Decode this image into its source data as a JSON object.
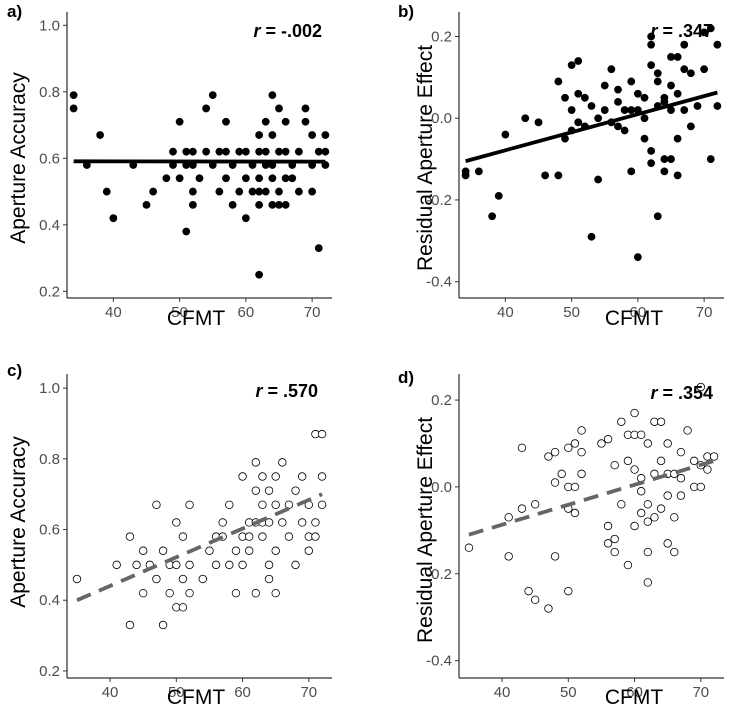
{
  "chart_data": [
    {
      "panel": "a)",
      "type": "scatter",
      "xlabel": "CFMT",
      "ylabel": "Aperture Accuracy",
      "annotation": {
        "stat": "r",
        "value": " = -.002"
      },
      "xlim": [
        33,
        73
      ],
      "ylim": [
        0.18,
        1.04
      ],
      "xticks": [
        40,
        50,
        60,
        70
      ],
      "yticks": [
        0.2,
        0.4,
        0.6,
        0.8,
        1.0
      ],
      "ytick_labels": [
        "0.2",
        "0.4",
        "0.6",
        "0.8",
        "1.0"
      ],
      "marker": "filled",
      "trend": {
        "style": "solid",
        "color": "#000000",
        "x": [
          34,
          72
        ],
        "y": [
          0.591,
          0.59
        ]
      },
      "points": [
        [
          34,
          0.79
        ],
        [
          34,
          0.75
        ],
        [
          36,
          0.58
        ],
        [
          38,
          0.67
        ],
        [
          39,
          0.5
        ],
        [
          40,
          0.42
        ],
        [
          43,
          0.58
        ],
        [
          45,
          0.46
        ],
        [
          46,
          0.5
        ],
        [
          48,
          0.54
        ],
        [
          49,
          0.62
        ],
        [
          49,
          0.58
        ],
        [
          50,
          0.71
        ],
        [
          50,
          0.54
        ],
        [
          51,
          0.62
        ],
        [
          51,
          0.58
        ],
        [
          51,
          0.38
        ],
        [
          52,
          0.62
        ],
        [
          52,
          0.58
        ],
        [
          52,
          0.5
        ],
        [
          52,
          0.46
        ],
        [
          53,
          0.54
        ],
        [
          54,
          0.75
        ],
        [
          54,
          0.62
        ],
        [
          55,
          0.79
        ],
        [
          55,
          0.58
        ],
        [
          56,
          0.62
        ],
        [
          56,
          0.5
        ],
        [
          57,
          0.71
        ],
        [
          57,
          0.62
        ],
        [
          57,
          0.54
        ],
        [
          58,
          0.58
        ],
        [
          58,
          0.46
        ],
        [
          59,
          0.62
        ],
        [
          59,
          0.5
        ],
        [
          60,
          0.62
        ],
        [
          60,
          0.54
        ],
        [
          60,
          0.42
        ],
        [
          61,
          0.5
        ],
        [
          61,
          0.58
        ],
        [
          62,
          0.67
        ],
        [
          62,
          0.62
        ],
        [
          62,
          0.54
        ],
        [
          62,
          0.5
        ],
        [
          62,
          0.46
        ],
        [
          62,
          0.25
        ],
        [
          63,
          0.71
        ],
        [
          63,
          0.62
        ],
        [
          63,
          0.58
        ],
        [
          63,
          0.5
        ],
        [
          64,
          0.79
        ],
        [
          64,
          0.67
        ],
        [
          64,
          0.58
        ],
        [
          64,
          0.54
        ],
        [
          64,
          0.46
        ],
        [
          65,
          0.75
        ],
        [
          65,
          0.62
        ],
        [
          65,
          0.5
        ],
        [
          65,
          0.46
        ],
        [
          66,
          0.71
        ],
        [
          66,
          0.62
        ],
        [
          66,
          0.54
        ],
        [
          66,
          0.46
        ],
        [
          67,
          0.58
        ],
        [
          67,
          0.54
        ],
        [
          68,
          0.62
        ],
        [
          68,
          0.5
        ],
        [
          69,
          0.75
        ],
        [
          69,
          0.71
        ],
        [
          70,
          0.67
        ],
        [
          70,
          0.58
        ],
        [
          70,
          0.5
        ],
        [
          71,
          0.62
        ],
        [
          71,
          0.33
        ],
        [
          72,
          0.67
        ],
        [
          72,
          0.62
        ],
        [
          72,
          0.58
        ]
      ]
    },
    {
      "panel": "b)",
      "type": "scatter",
      "xlabel": "CFMT",
      "ylabel": "Residual Aperture Effect",
      "annotation": {
        "stat": "r",
        "value": " = .347"
      },
      "xlim": [
        33,
        73
      ],
      "ylim": [
        -0.44,
        0.26
      ],
      "xticks": [
        40,
        50,
        60,
        70
      ],
      "yticks": [
        -0.4,
        -0.2,
        0.0,
        0.2
      ],
      "ytick_labels": [
        "-0.4",
        "-0.2",
        "0.0",
        "0.2"
      ],
      "marker": "filled",
      "trend": {
        "style": "solid",
        "color": "#000000",
        "x": [
          34,
          72
        ],
        "y": [
          -0.105,
          0.063
        ]
      },
      "points": [
        [
          34,
          -0.13
        ],
        [
          34,
          -0.14
        ],
        [
          36,
          -0.13
        ],
        [
          38,
          -0.24
        ],
        [
          39,
          -0.19
        ],
        [
          40,
          -0.04
        ],
        [
          43,
          0.0
        ],
        [
          45,
          -0.01
        ],
        [
          46,
          -0.14
        ],
        [
          48,
          -0.14
        ],
        [
          48,
          0.09
        ],
        [
          49,
          0.05
        ],
        [
          49,
          -0.05
        ],
        [
          50,
          0.13
        ],
        [
          50,
          0.02
        ],
        [
          50,
          -0.03
        ],
        [
          51,
          0.14
        ],
        [
          51,
          0.06
        ],
        [
          51,
          -0.01
        ],
        [
          52,
          0.05
        ],
        [
          52,
          -0.02
        ],
        [
          53,
          -0.29
        ],
        [
          53,
          0.03
        ],
        [
          54,
          0.0
        ],
        [
          54,
          -0.15
        ],
        [
          55,
          0.02
        ],
        [
          55,
          0.08
        ],
        [
          56,
          0.12
        ],
        [
          56,
          -0.01
        ],
        [
          57,
          0.07
        ],
        [
          57,
          0.04
        ],
        [
          57,
          -0.02
        ],
        [
          58,
          0.02
        ],
        [
          58,
          -0.03
        ],
        [
          59,
          0.09
        ],
        [
          59,
          0.02
        ],
        [
          59,
          -0.13
        ],
        [
          60,
          0.06
        ],
        [
          60,
          0.02
        ],
        [
          60,
          -0.34
        ],
        [
          61,
          0.05
        ],
        [
          61,
          0.0
        ],
        [
          61,
          -0.05
        ],
        [
          62,
          0.2
        ],
        [
          62,
          0.18
        ],
        [
          62,
          0.13
        ],
        [
          62,
          -0.08
        ],
        [
          62,
          -0.11
        ],
        [
          63,
          0.11
        ],
        [
          63,
          0.09
        ],
        [
          63,
          0.03
        ],
        [
          63,
          -0.24
        ],
        [
          64,
          0.04
        ],
        [
          64,
          0.05
        ],
        [
          64,
          -0.1
        ],
        [
          64,
          -0.13
        ],
        [
          65,
          0.08
        ],
        [
          65,
          0.15
        ],
        [
          65,
          0.02
        ],
        [
          65,
          -0.1
        ],
        [
          66,
          0.15
        ],
        [
          66,
          0.06
        ],
        [
          66,
          -0.05
        ],
        [
          66,
          -0.14
        ],
        [
          67,
          0.18
        ],
        [
          67,
          0.12
        ],
        [
          67,
          0.02
        ],
        [
          68,
          0.11
        ],
        [
          68,
          -0.02
        ],
        [
          69,
          0.03
        ],
        [
          70,
          0.21
        ],
        [
          70,
          0.12
        ],
        [
          71,
          0.22
        ],
        [
          71,
          -0.1
        ],
        [
          72,
          0.18
        ],
        [
          72,
          0.03
        ]
      ]
    },
    {
      "panel": "c)",
      "type": "scatter",
      "xlabel": "CFMT",
      "ylabel": "Aperture Accuracy",
      "annotation": {
        "stat": "r",
        "value": " = .570"
      },
      "xlim": [
        33.5,
        73.5
      ],
      "ylim": [
        0.18,
        1.04
      ],
      "xticks": [
        40,
        50,
        60,
        70
      ],
      "yticks": [
        0.2,
        0.4,
        0.6,
        0.8,
        1.0
      ],
      "ytick_labels": [
        "0.2",
        "0.4",
        "0.6",
        "0.8",
        "1.0"
      ],
      "marker": "open",
      "trend": {
        "style": "dashed",
        "color": "#666666",
        "x": [
          35,
          72
        ],
        "y": [
          0.4,
          0.7
        ]
      },
      "points": [
        [
          35,
          0.46
        ],
        [
          41,
          0.5
        ],
        [
          43,
          0.58
        ],
        [
          43,
          0.33
        ],
        [
          44,
          0.5
        ],
        [
          45,
          0.54
        ],
        [
          45,
          0.42
        ],
        [
          46,
          0.5
        ],
        [
          47,
          0.67
        ],
        [
          47,
          0.46
        ],
        [
          48,
          0.54
        ],
        [
          48,
          0.33
        ],
        [
          49,
          0.5
        ],
        [
          49,
          0.42
        ],
        [
          50,
          0.62
        ],
        [
          50,
          0.5
        ],
        [
          50,
          0.38
        ],
        [
          51,
          0.58
        ],
        [
          51,
          0.46
        ],
        [
          51,
          0.38
        ],
        [
          52,
          0.67
        ],
        [
          52,
          0.42
        ],
        [
          52,
          0.5
        ],
        [
          54,
          0.46
        ],
        [
          55,
          0.54
        ],
        [
          56,
          0.58
        ],
        [
          56,
          0.5
        ],
        [
          57,
          0.62
        ],
        [
          57,
          0.58
        ],
        [
          58,
          0.67
        ],
        [
          58,
          0.5
        ],
        [
          59,
          0.54
        ],
        [
          59,
          0.42
        ],
        [
          60,
          0.75
        ],
        [
          60,
          0.58
        ],
        [
          60,
          0.5
        ],
        [
          61,
          0.62
        ],
        [
          61,
          0.54
        ],
        [
          61,
          0.58
        ],
        [
          62,
          0.79
        ],
        [
          62,
          0.71
        ],
        [
          62,
          0.62
        ],
        [
          62,
          0.42
        ],
        [
          63,
          0.75
        ],
        [
          63,
          0.67
        ],
        [
          63,
          0.62
        ],
        [
          63,
          0.58
        ],
        [
          64,
          0.71
        ],
        [
          64,
          0.62
        ],
        [
          64,
          0.5
        ],
        [
          64,
          0.46
        ],
        [
          65,
          0.75
        ],
        [
          65,
          0.67
        ],
        [
          65,
          0.54
        ],
        [
          65,
          0.42
        ],
        [
          66,
          0.79
        ],
        [
          66,
          0.62
        ],
        [
          67,
          0.67
        ],
        [
          67,
          0.58
        ],
        [
          68,
          0.71
        ],
        [
          68,
          0.5
        ],
        [
          69,
          0.75
        ],
        [
          69,
          0.62
        ],
        [
          70,
          0.67
        ],
        [
          70,
          0.58
        ],
        [
          70,
          0.54
        ],
        [
          71,
          0.87
        ],
        [
          71,
          0.62
        ],
        [
          71,
          0.58
        ],
        [
          72,
          0.87
        ],
        [
          72,
          0.75
        ],
        [
          72,
          0.67
        ]
      ]
    },
    {
      "panel": "d)",
      "type": "scatter",
      "xlabel": "CFMT",
      "ylabel": "Residual Aperture Effect",
      "annotation": {
        "stat": "r",
        "value": " = .354"
      },
      "xlim": [
        33.5,
        73.5
      ],
      "ylim": [
        -0.44,
        0.26
      ],
      "xticks": [
        40,
        50,
        60,
        70
      ],
      "yticks": [
        -0.4,
        -0.2,
        0.0,
        0.2
      ],
      "ytick_labels": [
        "-0.4",
        "-0.2",
        "0.0",
        "0.2"
      ],
      "marker": "open",
      "trend": {
        "style": "dashed",
        "color": "#666666",
        "x": [
          35,
          72
        ],
        "y": [
          -0.11,
          0.06
        ]
      },
      "points": [
        [
          35,
          -0.14
        ],
        [
          41,
          -0.07
        ],
        [
          41,
          -0.16
        ],
        [
          43,
          0.09
        ],
        [
          43,
          -0.05
        ],
        [
          44,
          -0.24
        ],
        [
          45,
          -0.26
        ],
        [
          45,
          -0.04
        ],
        [
          47,
          0.07
        ],
        [
          47,
          -0.28
        ],
        [
          48,
          0.08
        ],
        [
          48,
          0.01
        ],
        [
          48,
          -0.16
        ],
        [
          49,
          0.03
        ],
        [
          50,
          0.09
        ],
        [
          50,
          0.0
        ],
        [
          50,
          -0.05
        ],
        [
          50,
          -0.24
        ],
        [
          51,
          0.1
        ],
        [
          51,
          0.0
        ],
        [
          51,
          -0.06
        ],
        [
          52,
          0.13
        ],
        [
          52,
          0.08
        ],
        [
          52,
          0.03
        ],
        [
          55,
          0.1
        ],
        [
          56,
          0.11
        ],
        [
          56,
          -0.09
        ],
        [
          56,
          -0.13
        ],
        [
          57,
          0.05
        ],
        [
          57,
          -0.12
        ],
        [
          57,
          -0.15
        ],
        [
          58,
          0.15
        ],
        [
          58,
          -0.04
        ],
        [
          59,
          0.12
        ],
        [
          59,
          0.06
        ],
        [
          59,
          -0.18
        ],
        [
          60,
          0.17
        ],
        [
          60,
          0.12
        ],
        [
          60,
          0.04
        ],
        [
          60,
          -0.09
        ],
        [
          61,
          0.12
        ],
        [
          61,
          0.02
        ],
        [
          61,
          -0.01
        ],
        [
          61,
          -0.06
        ],
        [
          62,
          0.1
        ],
        [
          62,
          -0.04
        ],
        [
          62,
          -0.08
        ],
        [
          62,
          -0.15
        ],
        [
          62,
          -0.22
        ],
        [
          63,
          0.15
        ],
        [
          63,
          0.03
        ],
        [
          63,
          -0.07
        ],
        [
          64,
          0.15
        ],
        [
          64,
          0.06
        ],
        [
          64,
          -0.05
        ],
        [
          65,
          0.1
        ],
        [
          65,
          0.03
        ],
        [
          65,
          -0.02
        ],
        [
          65,
          -0.13
        ],
        [
          66,
          0.03
        ],
        [
          66,
          -0.07
        ],
        [
          66,
          -0.15
        ],
        [
          67,
          0.08
        ],
        [
          67,
          0.02
        ],
        [
          67,
          -0.02
        ],
        [
          68,
          0.13
        ],
        [
          69,
          0.06
        ],
        [
          69,
          0.0
        ],
        [
          70,
          0.23
        ],
        [
          70,
          0.05
        ],
        [
          70,
          0.0
        ],
        [
          71,
          0.07
        ],
        [
          71,
          0.04
        ],
        [
          72,
          0.07
        ]
      ]
    }
  ]
}
